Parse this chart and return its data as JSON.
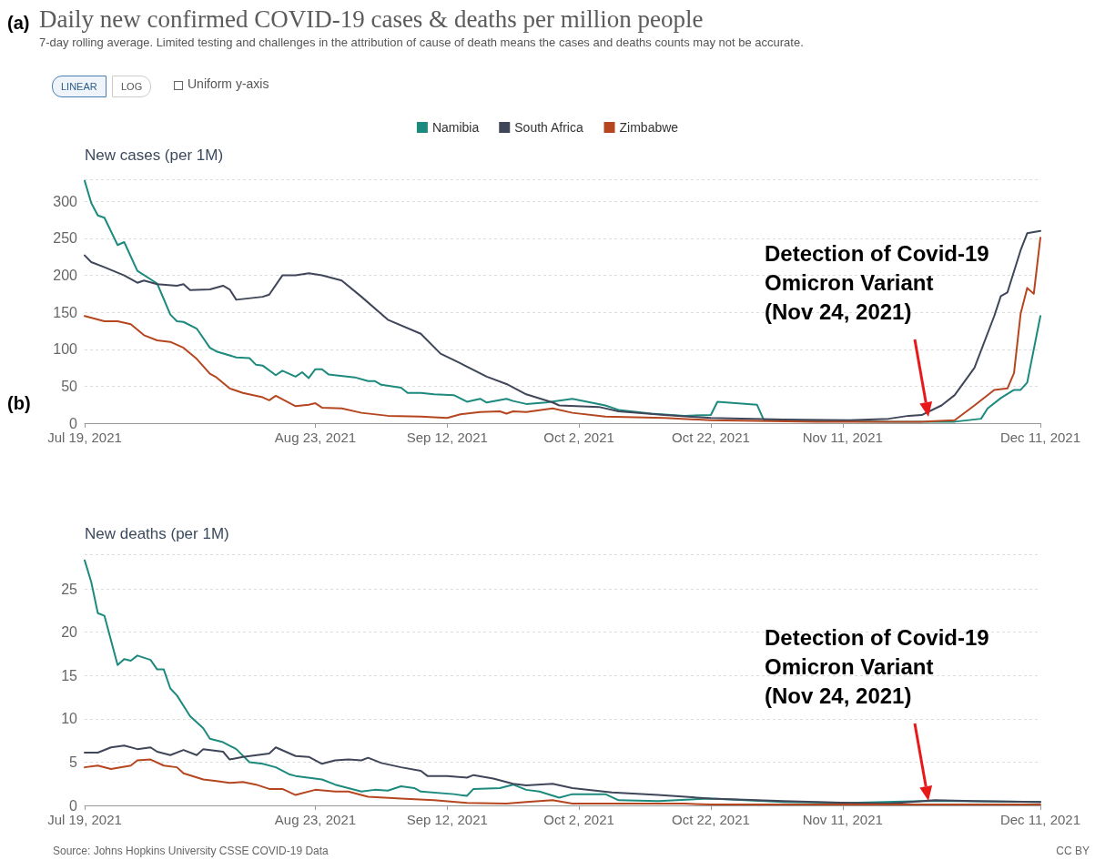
{
  "chart_data": [
    {
      "type": "line",
      "title": "Daily new confirmed COVID-19 cases & deaths per million people",
      "subtitle": "7-day rolling average. Limited testing and challenges in the attribution of cause of death means the cases and deaths counts may not be accurate.",
      "ylabel": "New cases (per 1M)",
      "xlim": [
        "2021-07-19",
        "2021-12-11"
      ],
      "xticks": [
        {
          "value": "2021-07-19",
          "label": "Jul 19, 2021"
        },
        {
          "value": "2021-08-23",
          "label": "Aug 23, 2021"
        },
        {
          "value": "2021-09-12",
          "label": "Sep 12, 2021"
        },
        {
          "value": "2021-10-02",
          "label": "Oct 2, 2021"
        },
        {
          "value": "2021-10-22",
          "label": "Oct 22, 2021"
        },
        {
          "value": "2021-11-11",
          "label": "Nov 11, 2021"
        },
        {
          "value": "2021-12-11",
          "label": "Dec 11, 2021"
        }
      ],
      "ylim": [
        0,
        330
      ],
      "yticks": [
        0,
        50,
        100,
        150,
        200,
        250,
        300
      ],
      "grid": "y",
      "legend": "top",
      "marker": "none",
      "line_style": "solid",
      "annotations": [
        "(a)",
        "LINEAR",
        "LOG",
        "Uniform y-axis",
        "Detection of Covid-19\nOmicron Variant\n(Nov 24, 2021)"
      ],
      "series": [
        {
          "name": "Namibia",
          "color": "#1d8a7e",
          "x": [
            "2021-07-19",
            "2021-07-20",
            "2021-07-21",
            "2021-07-22",
            "2021-07-24",
            "2021-07-25",
            "2021-07-27",
            "2021-07-30",
            "2021-08-01",
            "2021-08-02",
            "2021-08-03",
            "2021-08-05",
            "2021-08-07",
            "2021-08-08",
            "2021-08-11",
            "2021-08-13",
            "2021-08-14",
            "2021-08-15",
            "2021-08-17",
            "2021-08-18",
            "2021-08-20",
            "2021-08-21",
            "2021-08-22",
            "2021-08-23",
            "2021-08-24",
            "2021-08-25",
            "2021-08-29",
            "2021-08-31",
            "2021-09-01",
            "2021-09-02",
            "2021-09-05",
            "2021-09-06",
            "2021-09-08",
            "2021-09-10",
            "2021-09-13",
            "2021-09-15",
            "2021-09-17",
            "2021-09-18",
            "2021-09-21",
            "2021-09-22",
            "2021-09-24",
            "2021-09-27",
            "2021-10-01",
            "2021-10-06",
            "2021-10-08",
            "2021-10-13",
            "2021-10-18",
            "2021-10-22",
            "2021-10-23",
            "2021-10-29",
            "2021-10-30",
            "2021-11-07",
            "2021-11-18",
            "2021-11-28",
            "2021-12-02",
            "2021-12-03",
            "2021-12-05",
            "2021-12-07",
            "2021-12-08",
            "2021-12-09",
            "2021-12-11"
          ],
          "values": [
            328,
            298,
            281,
            278,
            241,
            245,
            206,
            189,
            147,
            138,
            137,
            128,
            102,
            97,
            89,
            88,
            79,
            78,
            65,
            71,
            63,
            69,
            61,
            73,
            73,
            66,
            62,
            57,
            57,
            52,
            48,
            41,
            41,
            39,
            38,
            29,
            33,
            28,
            33,
            30,
            26,
            28,
            33,
            24,
            18,
            13,
            10,
            11,
            29,
            25,
            5,
            3,
            2,
            2,
            6,
            20,
            34,
            45,
            45,
            55,
            145
          ]
        },
        {
          "name": "South Africa",
          "color": "#40465a",
          "x": [
            "2021-07-19",
            "2021-07-20",
            "2021-07-22",
            "2021-07-25",
            "2021-07-27",
            "2021-07-28",
            "2021-07-30",
            "2021-08-02",
            "2021-08-03",
            "2021-08-04",
            "2021-08-07",
            "2021-08-09",
            "2021-08-10",
            "2021-08-11",
            "2021-08-15",
            "2021-08-16",
            "2021-08-18",
            "2021-08-20",
            "2021-08-22",
            "2021-08-24",
            "2021-08-27",
            "2021-08-30",
            "2021-09-03",
            "2021-09-08",
            "2021-09-11",
            "2021-09-14",
            "2021-09-18",
            "2021-09-21",
            "2021-09-24",
            "2021-09-28",
            "2021-09-29",
            "2021-10-05",
            "2021-10-08",
            "2021-10-15",
            "2021-10-22",
            "2021-11-02",
            "2021-11-12",
            "2021-11-18",
            "2021-11-21",
            "2021-11-23",
            "2021-11-26",
            "2021-11-28",
            "2021-12-01",
            "2021-12-04",
            "2021-12-05",
            "2021-12-06",
            "2021-12-08",
            "2021-12-09",
            "2021-12-11"
          ],
          "values": [
            227,
            218,
            211,
            200,
            190,
            193,
            188,
            186,
            188,
            180,
            181,
            186,
            181,
            167,
            171,
            174,
            200,
            200,
            203,
            200,
            193,
            171,
            140,
            121,
            94,
            81,
            63,
            53,
            39,
            28,
            24,
            22,
            16,
            11,
            7,
            5,
            4,
            6,
            10,
            11,
            24,
            38,
            75,
            145,
            172,
            177,
            234,
            257,
            260
          ]
        },
        {
          "name": "Zimbabwe",
          "color": "#b5461f",
          "x": [
            "2021-07-19",
            "2021-07-22",
            "2021-07-24",
            "2021-07-26",
            "2021-07-28",
            "2021-07-30",
            "2021-08-01",
            "2021-08-03",
            "2021-08-05",
            "2021-08-07",
            "2021-08-08",
            "2021-08-10",
            "2021-08-12",
            "2021-08-15",
            "2021-08-16",
            "2021-08-17",
            "2021-08-20",
            "2021-08-22",
            "2021-08-23",
            "2021-08-24",
            "2021-08-27",
            "2021-08-30",
            "2021-09-03",
            "2021-09-08",
            "2021-09-12",
            "2021-09-14",
            "2021-09-17",
            "2021-09-20",
            "2021-09-21",
            "2021-09-22",
            "2021-09-24",
            "2021-09-28",
            "2021-10-01",
            "2021-10-06",
            "2021-10-15",
            "2021-10-22",
            "2021-11-07",
            "2021-11-23",
            "2021-11-28",
            "2021-12-01",
            "2021-12-04",
            "2021-12-06",
            "2021-12-07",
            "2021-12-08",
            "2021-12-09",
            "2021-12-10",
            "2021-12-11"
          ],
          "values": [
            145,
            138,
            138,
            134,
            119,
            112,
            110,
            102,
            87,
            67,
            62,
            47,
            41,
            35,
            31,
            37,
            23,
            25,
            27,
            21,
            20,
            14,
            10,
            9,
            7,
            12,
            15,
            16,
            13,
            16,
            15,
            20,
            14,
            9,
            7,
            4,
            2,
            2,
            4,
            24,
            45,
            47,
            68,
            148,
            183,
            175,
            251
          ]
        }
      ]
    },
    {
      "type": "line",
      "ylabel": "New deaths (per 1M)",
      "xlim": [
        "2021-07-19",
        "2021-12-11"
      ],
      "xticks": [
        {
          "value": "2021-07-19",
          "label": "Jul 19, 2021"
        },
        {
          "value": "2021-08-23",
          "label": "Aug 23, 2021"
        },
        {
          "value": "2021-09-12",
          "label": "Sep 12, 2021"
        },
        {
          "value": "2021-10-02",
          "label": "Oct 2, 2021"
        },
        {
          "value": "2021-10-22",
          "label": "Oct 22, 2021"
        },
        {
          "value": "2021-11-11",
          "label": "Nov 11, 2021"
        },
        {
          "value": "2021-12-11",
          "label": "Dec 11, 2021"
        }
      ],
      "ylim": [
        0,
        29
      ],
      "yticks": [
        0,
        5,
        10,
        15,
        20,
        25
      ],
      "grid": "y",
      "marker": "none",
      "line_style": "solid",
      "annotations": [
        "(b)",
        "Source: Johns Hopkins University CSSE COVID-19 Data",
        "CC BY",
        "Detection of Covid-19\nOmicron Variant\n(Nov 24, 2021)"
      ],
      "series": [
        {
          "color": "#1d8a7e",
          "x": [
            "2021-07-19",
            "2021-07-20",
            "2021-07-21",
            "2021-07-22",
            "2021-07-24",
            "2021-07-25",
            "2021-07-26",
            "2021-07-27",
            "2021-07-29",
            "2021-07-30",
            "2021-07-31",
            "2021-08-01",
            "2021-08-02",
            "2021-08-04",
            "2021-08-06",
            "2021-08-07",
            "2021-08-09",
            "2021-08-11",
            "2021-08-13",
            "2021-08-15",
            "2021-08-17",
            "2021-08-19",
            "2021-08-20",
            "2021-08-24",
            "2021-08-26",
            "2021-08-30",
            "2021-09-01",
            "2021-09-03",
            "2021-09-05",
            "2021-09-07",
            "2021-09-08",
            "2021-09-13",
            "2021-09-15",
            "2021-09-16",
            "2021-09-20",
            "2021-09-22",
            "2021-09-24",
            "2021-09-26",
            "2021-09-29",
            "2021-10-01",
            "2021-10-06",
            "2021-10-08",
            "2021-10-14",
            "2021-10-22",
            "2021-11-02",
            "2021-11-12",
            "2021-11-23",
            "2021-11-28",
            "2021-12-11"
          ],
          "values": [
            28.3,
            25.8,
            22.2,
            21.9,
            16.2,
            16.9,
            16.7,
            17.3,
            16.8,
            15.7,
            15.7,
            13.5,
            12.7,
            10.3,
            8.9,
            7.7,
            7.3,
            6.5,
            5.0,
            4.8,
            4.4,
            3.6,
            3.4,
            3.0,
            2.4,
            1.6,
            1.8,
            1.7,
            2.2,
            2.0,
            1.6,
            1.3,
            1.1,
            1.9,
            2.0,
            2.4,
            1.8,
            1.6,
            0.9,
            1.3,
            1.3,
            0.6,
            0.5,
            0.8,
            0.4,
            0.3,
            0.5,
            0.5,
            0.4
          ]
        },
        {
          "color": "#40465a",
          "x": [
            "2021-07-19",
            "2021-07-21",
            "2021-07-23",
            "2021-07-25",
            "2021-07-27",
            "2021-07-29",
            "2021-07-30",
            "2021-08-01",
            "2021-08-03",
            "2021-08-05",
            "2021-08-06",
            "2021-08-09",
            "2021-08-10",
            "2021-08-12",
            "2021-08-16",
            "2021-08-17",
            "2021-08-20",
            "2021-08-22",
            "2021-08-24",
            "2021-08-26",
            "2021-08-28",
            "2021-08-30",
            "2021-08-31",
            "2021-09-02",
            "2021-09-05",
            "2021-09-08",
            "2021-09-09",
            "2021-09-12",
            "2021-09-15",
            "2021-09-16",
            "2021-09-19",
            "2021-09-22",
            "2021-09-24",
            "2021-09-28",
            "2021-10-01",
            "2021-10-07",
            "2021-10-14",
            "2021-10-22",
            "2021-11-02",
            "2021-11-12",
            "2021-11-18",
            "2021-11-25",
            "2021-12-01",
            "2021-12-11"
          ],
          "values": [
            6.1,
            6.1,
            6.7,
            6.9,
            6.5,
            6.7,
            6.2,
            5.8,
            6.4,
            5.8,
            6.5,
            6.2,
            5.3,
            5.6,
            6.0,
            6.7,
            5.7,
            5.6,
            4.8,
            5.2,
            5.3,
            5.2,
            5.5,
            4.9,
            4.4,
            4.0,
            3.4,
            3.4,
            3.2,
            3.5,
            3.1,
            2.5,
            2.3,
            2.5,
            2.0,
            1.5,
            1.2,
            0.8,
            0.5,
            0.3,
            0.2,
            0.6,
            0.5,
            0.4
          ]
        },
        {
          "color": "#b5461f",
          "x": [
            "2021-07-19",
            "2021-07-21",
            "2021-07-23",
            "2021-07-26",
            "2021-07-27",
            "2021-07-29",
            "2021-07-31",
            "2021-08-02",
            "2021-08-03",
            "2021-08-06",
            "2021-08-08",
            "2021-08-10",
            "2021-08-12",
            "2021-08-14",
            "2021-08-16",
            "2021-08-18",
            "2021-08-20",
            "2021-08-23",
            "2021-08-26",
            "2021-08-28",
            "2021-08-31",
            "2021-09-05",
            "2021-09-10",
            "2021-09-15",
            "2021-09-21",
            "2021-09-24",
            "2021-09-28",
            "2021-10-01",
            "2021-10-18",
            "2021-10-22",
            "2021-11-12",
            "2021-12-11"
          ],
          "values": [
            4.4,
            4.6,
            4.2,
            4.6,
            5.2,
            5.3,
            4.6,
            4.4,
            3.7,
            3.0,
            2.8,
            2.6,
            2.7,
            2.4,
            1.9,
            1.9,
            1.2,
            1.8,
            1.6,
            1.6,
            1.0,
            0.8,
            0.6,
            0.3,
            0.2,
            0.4,
            0.6,
            0.2,
            0.2,
            0.1,
            0.1,
            0.1
          ]
        }
      ]
    }
  ]
}
